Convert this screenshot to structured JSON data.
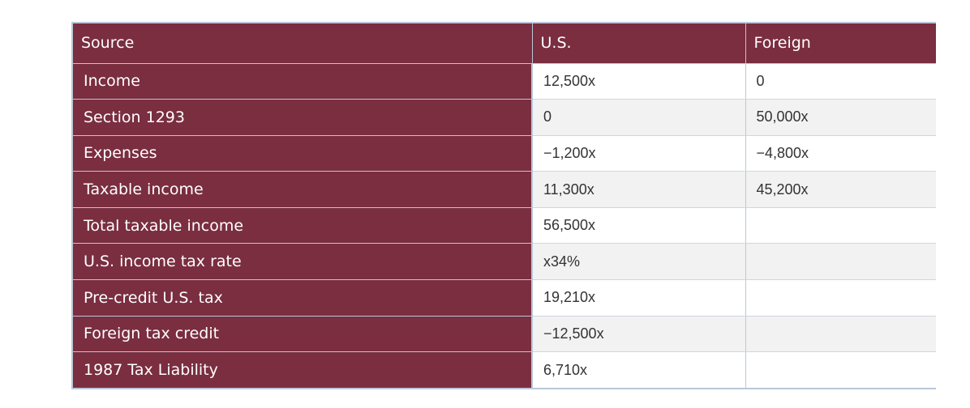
{
  "table": {
    "headers": [
      "Source",
      "U.S.",
      "Foreign"
    ],
    "rows": [
      {
        "label": "Income",
        "us": "12,500x",
        "foreign": "0"
      },
      {
        "label": "Section 1293",
        "us": "0",
        "foreign": "50,000x"
      },
      {
        "label": "Expenses",
        "us": "−1,200x",
        "foreign": "−4,800x"
      },
      {
        "label": "Taxable income",
        "us": "11,300x",
        "foreign": "45,200x"
      },
      {
        "label": "Total taxable income",
        "us": "56,500x",
        "foreign": ""
      },
      {
        "label": "U.S. income tax rate",
        "us": "x34%",
        "foreign": ""
      },
      {
        "label": "Pre-credit U.S. tax",
        "us": "19,210x",
        "foreign": ""
      },
      {
        "label": "Foreign tax credit",
        "us": "−12,500x",
        "foreign": ""
      },
      {
        "label": "1987 Tax Liability",
        "us": "6,710x",
        "foreign": ""
      }
    ]
  },
  "colors": {
    "header_bg": "#7a2e40",
    "header_text": "#ffffff",
    "row_alt_bg": "#f2f2f2",
    "border": "#b9c7d8"
  }
}
